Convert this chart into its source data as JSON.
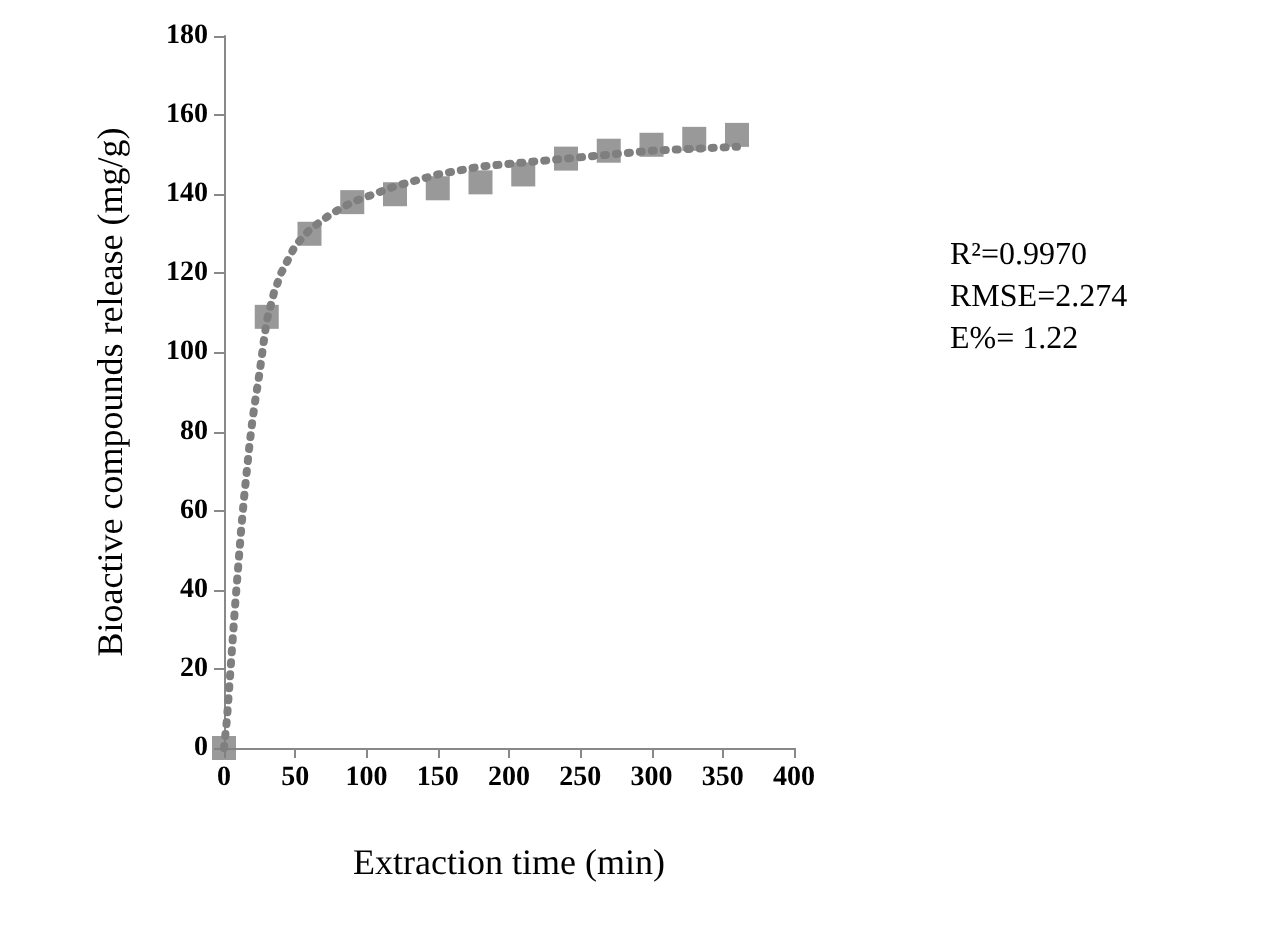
{
  "chart_data": {
    "type": "scatter",
    "xlabel": "Extraction time (min)",
    "ylabel": "Bioactive compounds release (mg/g)",
    "xlim": [
      0,
      400
    ],
    "xticks": [
      0,
      50,
      100,
      150,
      200,
      250,
      300,
      350,
      400
    ],
    "ylim": [
      0,
      180
    ],
    "yticks": [
      0,
      20,
      40,
      60,
      80,
      100,
      120,
      140,
      160,
      180
    ],
    "grid": false,
    "annotations": [
      "R²=0.9970",
      "RMSE=2.274",
      "E%= 1.22"
    ],
    "series": [
      {
        "type": "line",
        "color": "#7f7f7f",
        "marker": "none",
        "line_style": "dotted",
        "x": [
          0,
          2,
          4,
          6,
          8,
          10,
          12,
          14,
          16,
          18,
          20,
          22,
          25,
          28,
          30,
          35,
          40,
          50,
          60,
          75,
          90,
          120,
          150,
          180,
          210,
          240,
          270,
          300,
          330,
          360
        ],
        "values": [
          0,
          7,
          17,
          27,
          37,
          46,
          55,
          63,
          70,
          77,
          83,
          88,
          95,
          103,
          108,
          115,
          120,
          127,
          131,
          135,
          138,
          142,
          145,
          147,
          148,
          149,
          150,
          151,
          151.5,
          152
        ]
      },
      {
        "color": "#7f7f7f",
        "marker": "square",
        "x": [
          0,
          30,
          60,
          90,
          120,
          150,
          180,
          210,
          240,
          270,
          300,
          330,
          360
        ],
        "values": [
          0,
          109,
          130,
          138,
          140,
          141.5,
          143,
          145,
          149,
          151,
          152.5,
          154,
          155
        ]
      }
    ]
  }
}
